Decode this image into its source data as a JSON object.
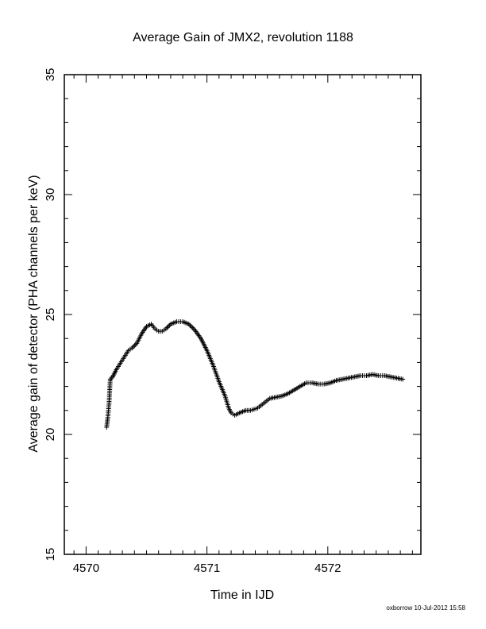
{
  "chart_data": {
    "type": "scatter",
    "title": "Average Gain of JMX2, revolution 1188",
    "xlabel": "Time in IJD",
    "ylabel": "Average gain of detector (PHA channels per keV)",
    "xlim": [
      4569.82,
      4572.77
    ],
    "ylim": [
      15,
      35
    ],
    "xticks": [
      4570,
      4571,
      4572
    ],
    "xtick_labels": [
      "4570",
      "4571",
      "4572"
    ],
    "yticks": [
      15,
      20,
      25,
      30,
      35
    ],
    "ytick_labels": [
      "15",
      "20",
      "25",
      "30",
      "35"
    ],
    "marker": "+",
    "grid": false,
    "series": [
      {
        "x": [
          4570.17,
          4570.18,
          4570.19,
          4570.2,
          4570.22,
          4570.25,
          4570.3,
          4570.35,
          4570.38,
          4570.42,
          4570.46,
          4570.5,
          4570.54,
          4570.57,
          4570.6,
          4570.63,
          4570.66,
          4570.7,
          4570.75,
          4570.8,
          4570.85,
          4570.9,
          4570.95,
          4571.0,
          4571.05,
          4571.1,
          4571.15,
          4571.18,
          4571.2,
          4571.23,
          4571.27,
          4571.32,
          4571.36,
          4571.42,
          4571.47,
          4571.52,
          4571.57,
          4571.62,
          4571.67,
          4571.72,
          4571.77,
          4571.82,
          4571.87,
          4571.92,
          4571.97,
          4572.02,
          4572.07,
          4572.12,
          4572.17,
          4572.22,
          4572.27,
          4572.32,
          4572.37,
          4572.42,
          4572.47,
          4572.52,
          4572.57,
          4572.62
        ],
        "y": [
          20.3,
          20.7,
          21.3,
          22.3,
          22.4,
          22.7,
          23.1,
          23.5,
          23.6,
          23.8,
          24.2,
          24.5,
          24.6,
          24.4,
          24.3,
          24.3,
          24.4,
          24.6,
          24.7,
          24.7,
          24.6,
          24.35,
          24.0,
          23.5,
          22.9,
          22.2,
          21.6,
          21.1,
          20.9,
          20.8,
          20.9,
          21.0,
          21.0,
          21.1,
          21.3,
          21.5,
          21.55,
          21.6,
          21.7,
          21.85,
          22.0,
          22.15,
          22.15,
          22.1,
          22.1,
          22.15,
          22.25,
          22.3,
          22.35,
          22.4,
          22.45,
          22.45,
          22.5,
          22.45,
          22.45,
          22.4,
          22.35,
          22.3
        ]
      }
    ]
  },
  "footer": {
    "signature": "oxborrow 10-Jul-2012 15:58"
  }
}
